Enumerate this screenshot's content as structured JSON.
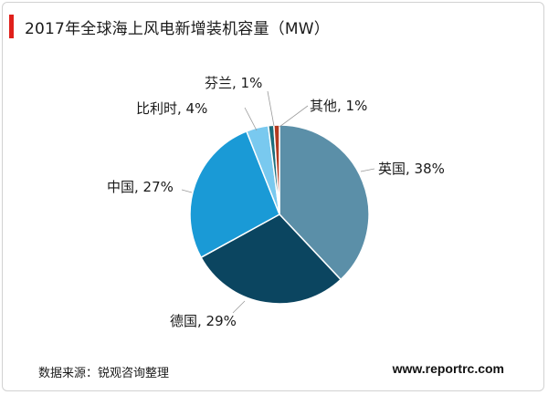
{
  "header": {
    "title": "2017年全球海上风电新增装机容量（MW）"
  },
  "footer": {
    "source": "数据来源：锐观咨询整理",
    "website": "www.reportrc.com"
  },
  "chart_data": {
    "type": "pie",
    "title": "2017年全球海上风电新增装机容量（MW）",
    "unit": "%",
    "slices": [
      {
        "name": "英国",
        "value": 38,
        "label": "英国, 38%",
        "color": "#5b8fa8"
      },
      {
        "name": "德国",
        "value": 29,
        "label": "德国, 29%",
        "color": "#0b4560"
      },
      {
        "name": "中国",
        "value": 27,
        "label": "中国, 27%",
        "color": "#1a9ad6"
      },
      {
        "name": "比利时",
        "value": 4,
        "label": "比利时, 4%",
        "color": "#79c9ef"
      },
      {
        "name": "芬兰",
        "value": 1,
        "label": "芬兰, 1%",
        "color": "#1c6e7d"
      },
      {
        "name": "其他",
        "value": 1,
        "label": "其他, 1%",
        "color": "#b23a1f"
      }
    ],
    "legend": "none"
  }
}
